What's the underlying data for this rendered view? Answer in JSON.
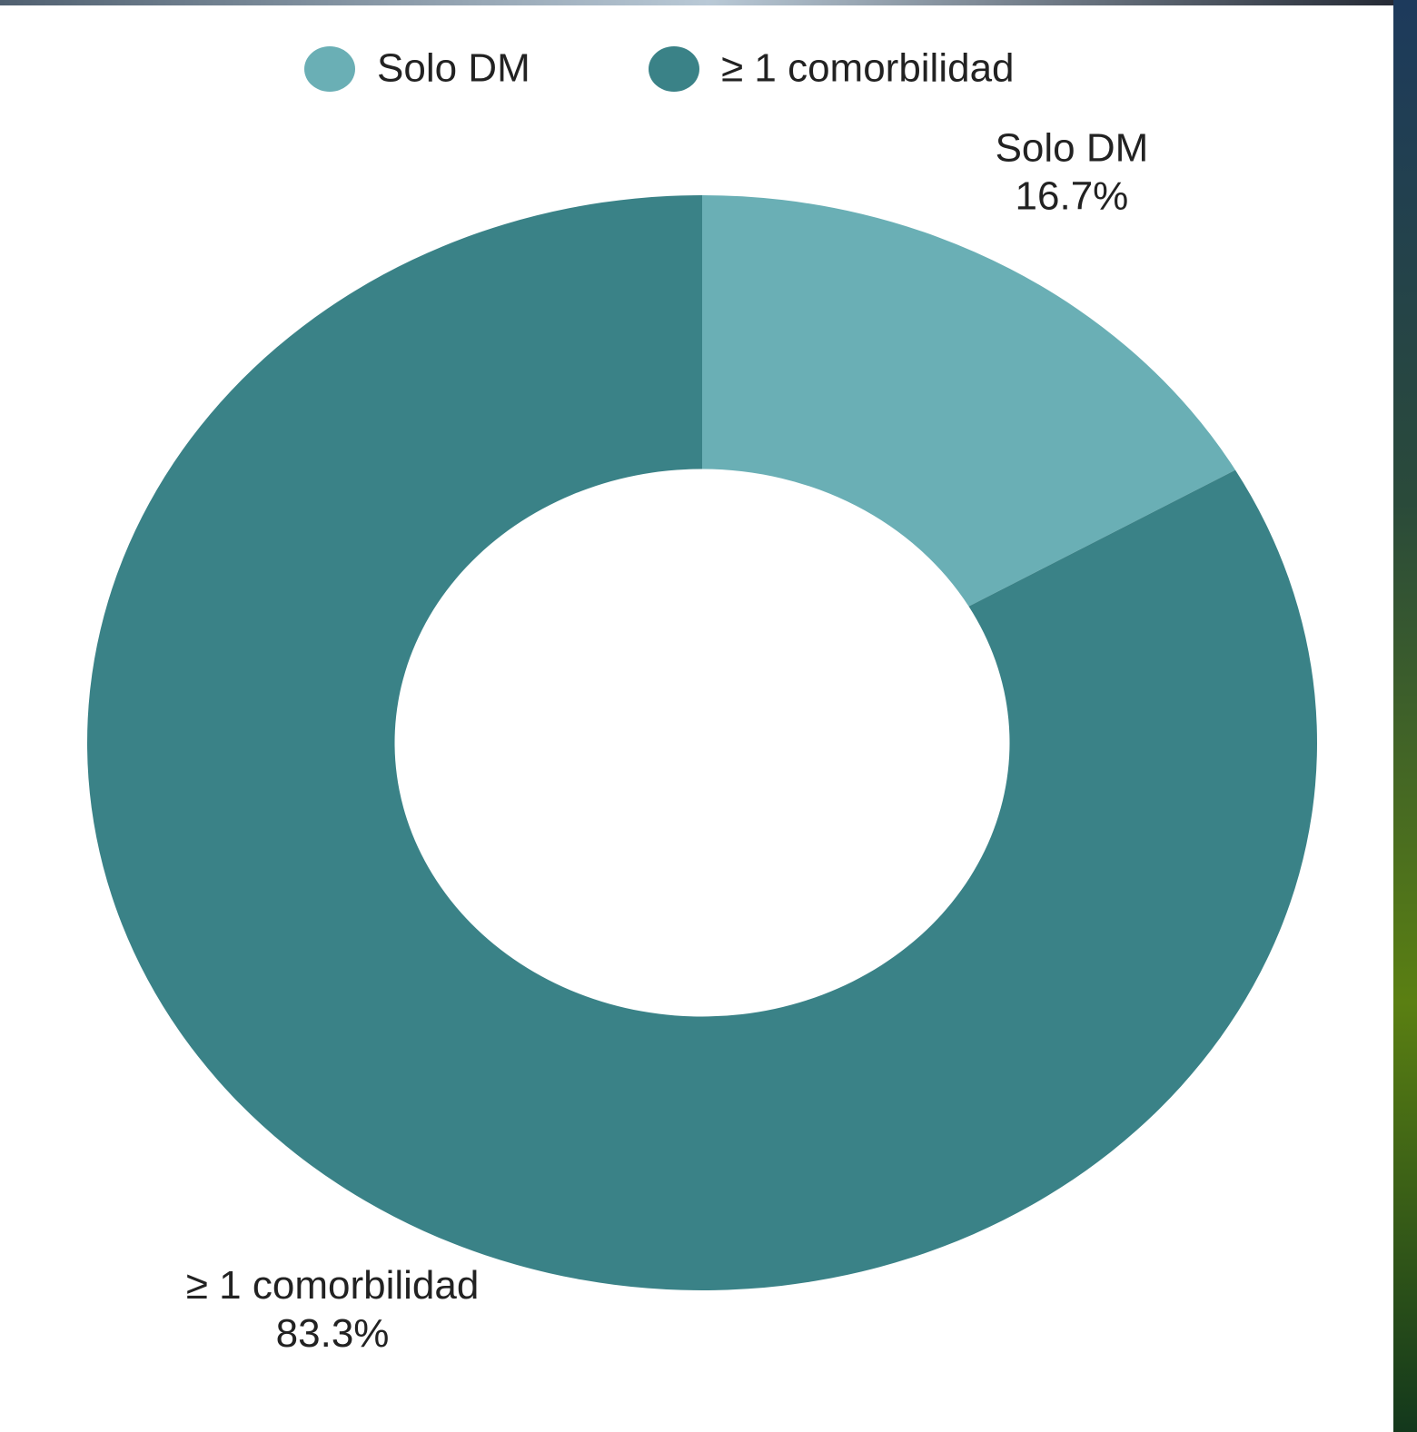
{
  "chart_data": {
    "type": "pie",
    "donut": true,
    "categories": [
      "Solo DM",
      "≥ 1 comorbilidad"
    ],
    "values": [
      16.7,
      83.3
    ],
    "value_labels": [
      "16.7%",
      "83.3%"
    ],
    "colors": [
      "#6aafb5",
      "#3a8287"
    ],
    "legend": "top"
  }
}
